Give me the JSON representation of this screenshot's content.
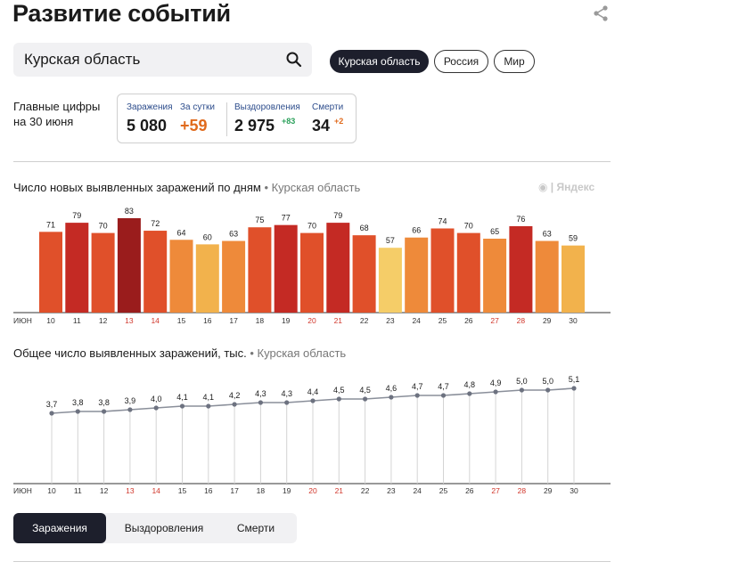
{
  "header": {
    "title": "Развитие событий"
  },
  "search": {
    "value": "Курская область"
  },
  "region_pills": [
    {
      "label": "Курская область",
      "active": true
    },
    {
      "label": "Россия",
      "active": false
    },
    {
      "label": "Мир",
      "active": false
    }
  ],
  "summary": {
    "label_line1": "Главные цифры",
    "label_line2": "на 30 июня",
    "infections_label": "Заражения",
    "infections_value": "5 080",
    "daily_label": "За сутки",
    "daily_value": "+59",
    "recovered_label": "Выздоровления",
    "recovered_value": "2 975",
    "recovered_delta": "+83",
    "deaths_label": "Смерти",
    "deaths_value": "34",
    "deaths_delta": "+2"
  },
  "watermark": "Яндекс",
  "colors": {
    "dark_red": "#9a1c1c",
    "red": "#c42a24",
    "red_orange": "#e0502a",
    "orange": "#ee8a3a",
    "yellow_orange": "#f2b24c",
    "yellow": "#f5cd68",
    "weekend": "#d0352a"
  },
  "chart_data": [
    {
      "type": "bar",
      "title": "Число новых выявленных заражений по дням",
      "region": "Курская область",
      "month_label": "июн",
      "categories": [
        "10",
        "11",
        "12",
        "13",
        "14",
        "15",
        "16",
        "17",
        "18",
        "19",
        "20",
        "21",
        "22",
        "23",
        "24",
        "25",
        "26",
        "27",
        "28",
        "29",
        "30"
      ],
      "weekend_categories": [
        "13",
        "14",
        "20",
        "21",
        "27",
        "28"
      ],
      "values": [
        71,
        79,
        70,
        83,
        72,
        64,
        60,
        63,
        75,
        77,
        70,
        79,
        68,
        57,
        66,
        74,
        70,
        65,
        76,
        63,
        59
      ],
      "ylim": [
        0,
        83
      ],
      "grid": false
    },
    {
      "type": "line",
      "title": "Общее число выявленных заражений, тыс.",
      "region": "Курская область",
      "month_label": "июн",
      "categories": [
        "10",
        "11",
        "12",
        "13",
        "14",
        "15",
        "16",
        "17",
        "18",
        "19",
        "20",
        "21",
        "22",
        "23",
        "24",
        "25",
        "26",
        "27",
        "28",
        "29",
        "30"
      ],
      "weekend_categories": [
        "13",
        "14",
        "20",
        "21",
        "27",
        "28"
      ],
      "values": [
        3.7,
        3.8,
        3.8,
        3.9,
        4.0,
        4.1,
        4.1,
        4.2,
        4.3,
        4.3,
        4.4,
        4.5,
        4.5,
        4.6,
        4.7,
        4.7,
        4.8,
        4.9,
        5.0,
        5.0,
        5.1
      ],
      "grid": true
    }
  ],
  "tabs": [
    {
      "label": "Заражения",
      "active": true
    },
    {
      "label": "Выздоровления",
      "active": false
    },
    {
      "label": "Смерти",
      "active": false
    }
  ]
}
